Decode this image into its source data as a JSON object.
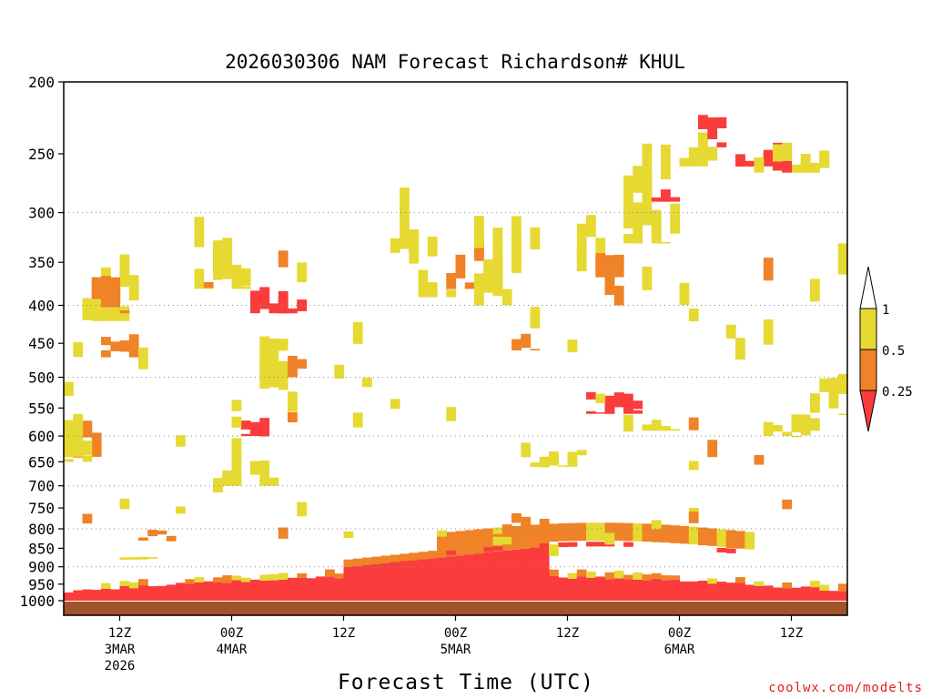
{
  "chart_data": {
    "type": "heatmap",
    "title": "2026030306 NAM Forecast Richardson# KHUL",
    "xlabel": "Forecast Time (UTC)",
    "ylabel": "",
    "credit": "coolwx.com/modelts",
    "y_axis": {
      "scale": "log-pressure",
      "range_hPa": [
        1000,
        200
      ],
      "ticks": [
        "200",
        "250",
        "300",
        "350",
        "400",
        "450",
        "500",
        "550",
        "600",
        "650",
        "700",
        "750",
        "800",
        "850",
        "900",
        "950",
        "1000"
      ],
      "gridlines_at": [
        300,
        400,
        500,
        600,
        700,
        800,
        900
      ]
    },
    "x_axis": {
      "start": "2026-03-03 06Z",
      "end": "2026-03-06 18Z",
      "ticks": [
        {
          "hour": 6,
          "l1": "12Z",
          "l2": "3MAR",
          "l3": "2026"
        },
        {
          "hour": 18,
          "l1": "00Z",
          "l2": "4MAR",
          "l3": ""
        },
        {
          "hour": 30,
          "l1": "12Z",
          "l2": "",
          "l3": ""
        },
        {
          "hour": 42,
          "l1": "00Z",
          "l2": "5MAR",
          "l3": ""
        },
        {
          "hour": 54,
          "l1": "12Z",
          "l2": "",
          "l3": ""
        },
        {
          "hour": 66,
          "l1": "00Z",
          "l2": "6MAR",
          "l3": ""
        },
        {
          "hour": 78,
          "l1": "12Z",
          "l2": "",
          "l3": ""
        }
      ]
    },
    "legend": {
      "placement": "right",
      "labels": [
        "1",
        "0.5",
        "0.25"
      ],
      "bins": [
        {
          "range": "> 1",
          "color": "#ffffff"
        },
        {
          "range": "0.5 - 1",
          "color": "#e6d932"
        },
        {
          "range": "0.25 - 0.5",
          "color": "#f08228"
        },
        {
          "range": "< 0.25",
          "color": "#fa3c3c"
        }
      ]
    },
    "colors": {
      "low": "#fa3c3c",
      "mid": "#f08228",
      "high": "#e6d932",
      "ground": "#a0522d"
    },
    "regions": [
      {
        "name": "boundary-layer-low-Ri",
        "band": "< 0.25",
        "p_hPa": [
          1000,
          930
        ],
        "hours": [
          0,
          84
        ]
      },
      {
        "name": "low-level-ramp",
        "band": "< 0.25",
        "p_hPa": [
          960,
          870
        ],
        "hours": [
          30,
          50
        ]
      },
      {
        "name": "frontal-inversion",
        "band": "0.25 - 0.5",
        "p_hPa": [
          870,
          770
        ],
        "hours": [
          40,
          72
        ]
      },
      {
        "name": "upper-jet-shear",
        "band": "< 0.25",
        "p_hPa": [
          260,
          220
        ],
        "hours": [
          68,
          82
        ]
      },
      {
        "name": "mid-level-patches-day1",
        "band": "0.25 - 0.5",
        "p_hPa": [
          420,
          330
        ],
        "hours": [
          2,
          8
        ]
      },
      {
        "name": "mid-level-patches-day2",
        "band": "< 0.25",
        "p_hPa": [
          400,
          360
        ],
        "hours": [
          20,
          27
        ]
      },
      {
        "name": "mid-level-patches-day3",
        "band": "0.25 - 0.5",
        "p_hPa": [
          380,
          340
        ],
        "hours": [
          41,
          47
        ]
      }
    ]
  }
}
